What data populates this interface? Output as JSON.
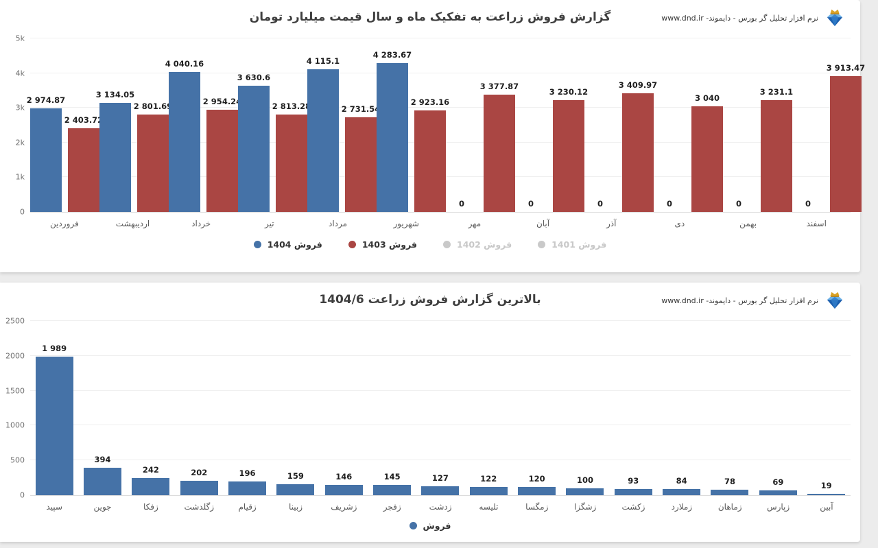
{
  "watermark": {
    "text": "نرم افزار تحلیل گر بورس - دایموند- www.dnd.ir",
    "icon": "diamond-crown-icon"
  },
  "colors": {
    "blue": "#4572a7",
    "red": "#aa4643",
    "disabled": "#c9c9c9"
  },
  "chart_data": [
    {
      "type": "bar",
      "title": "گزارش فروش زراعت به تفکیک ماه و سال قیمت میلیارد تومان",
      "categories": [
        "فروردین",
        "اردیبهشت",
        "خرداد",
        "تیر",
        "مرداد",
        "شهریور",
        "مهر",
        "آبان",
        "آذر",
        "دی",
        "بهمن",
        "اسفند"
      ],
      "series": [
        {
          "name": "فروش 1404",
          "color": "#4572a7",
          "enabled": true,
          "values": [
            2974.87,
            3134.05,
            4040.16,
            3630.6,
            4115.1,
            4283.67,
            0,
            0,
            0,
            0,
            0,
            0
          ]
        },
        {
          "name": "فروش 1403",
          "color": "#aa4643",
          "enabled": true,
          "values": [
            2403.72,
            2801.69,
            2954.24,
            2813.28,
            2731.54,
            2923.16,
            3377.87,
            3230.12,
            3409.97,
            3040,
            3231.1,
            3913.47
          ]
        },
        {
          "name": "فروش 1402",
          "color": "#c9c9c9",
          "enabled": false,
          "values": []
        },
        {
          "name": "فروش 1401",
          "color": "#c9c9c9",
          "enabled": false,
          "values": []
        }
      ],
      "ylim": [
        0,
        5000
      ],
      "yticks": [
        0,
        1000,
        2000,
        3000,
        4000,
        5000
      ],
      "ytick_labels": [
        "0",
        "1k",
        "2k",
        "3k",
        "4k",
        "5k"
      ],
      "grid": true,
      "legend_position": "bottom",
      "value_label_format": "space-thousands"
    },
    {
      "type": "bar",
      "title": "بالاترین گزارش فروش زراعت 1404/6",
      "categories": [
        "سپید",
        "جوین",
        "زفکا",
        "زگلدشت",
        "زقیام",
        "زبینا",
        "زشریف",
        "زفجر",
        "زدشت",
        "تلیسه",
        "زمگسا",
        "زشگزا",
        "زکشت",
        "زملارد",
        "زماهان",
        "زپارس",
        "آبین"
      ],
      "series": [
        {
          "name": "فروش",
          "color": "#4572a7",
          "enabled": true,
          "values": [
            1989,
            394,
            242,
            202,
            196,
            159,
            146,
            145,
            127,
            122,
            120,
            100,
            93,
            84,
            78,
            69,
            19
          ]
        }
      ],
      "ylim": [
        0,
        2500
      ],
      "yticks": [
        0,
        500,
        1000,
        1500,
        2000,
        2500
      ],
      "ytick_labels": [
        "0",
        "500",
        "1000",
        "1500",
        "2000",
        "2500"
      ],
      "grid": true,
      "legend_position": "bottom",
      "value_label_format": "space-thousands"
    }
  ]
}
